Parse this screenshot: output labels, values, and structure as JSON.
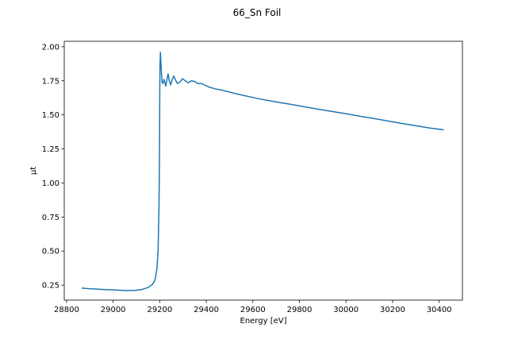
{
  "chart_data": {
    "type": "line",
    "title": "66_Sn Foil",
    "xlabel": "Energy [eV]",
    "ylabel": "μt",
    "xlim": [
      28790,
      30500
    ],
    "ylim": [
      0.14,
      2.04
    ],
    "xticks": [
      28800,
      29000,
      29200,
      29400,
      29600,
      29800,
      30000,
      30200,
      30400
    ],
    "yticks": [
      0.25,
      0.5,
      0.75,
      1.0,
      1.25,
      1.5,
      1.75,
      2.0
    ],
    "xtick_labels": [
      "28800",
      "29000",
      "29200",
      "29400",
      "29600",
      "29800",
      "30000",
      "30200",
      "30400"
    ],
    "ytick_labels": [
      "0.25",
      "0.50",
      "0.75",
      "1.00",
      "1.25",
      "1.50",
      "1.75",
      "2.00"
    ],
    "grid": false,
    "legend": false,
    "series": [
      {
        "color": "#1f77b4",
        "points": [
          [
            28865,
            0.228
          ],
          [
            28900,
            0.224
          ],
          [
            28950,
            0.219
          ],
          [
            29000,
            0.215
          ],
          [
            29050,
            0.211
          ],
          [
            29090,
            0.211
          ],
          [
            29120,
            0.217
          ],
          [
            29150,
            0.232
          ],
          [
            29170,
            0.258
          ],
          [
            29180,
            0.29
          ],
          [
            29188,
            0.37
          ],
          [
            29193,
            0.5
          ],
          [
            29197,
            0.85
          ],
          [
            29199,
            1.2
          ],
          [
            29200,
            1.6
          ],
          [
            29201,
            1.85
          ],
          [
            29203,
            1.96
          ],
          [
            29206,
            1.85
          ],
          [
            29210,
            1.74
          ],
          [
            29214,
            1.73
          ],
          [
            29218,
            1.76
          ],
          [
            29222,
            1.74
          ],
          [
            29226,
            1.71
          ],
          [
            29232,
            1.77
          ],
          [
            29236,
            1.8
          ],
          [
            29241,
            1.75
          ],
          [
            29247,
            1.72
          ],
          [
            29252,
            1.75
          ],
          [
            29260,
            1.785
          ],
          [
            29268,
            1.755
          ],
          [
            29276,
            1.73
          ],
          [
            29286,
            1.74
          ],
          [
            29298,
            1.765
          ],
          [
            29310,
            1.75
          ],
          [
            29322,
            1.735
          ],
          [
            29336,
            1.75
          ],
          [
            29350,
            1.745
          ],
          [
            29364,
            1.73
          ],
          [
            29378,
            1.73
          ],
          [
            29392,
            1.72
          ],
          [
            29410,
            1.705
          ],
          [
            29440,
            1.69
          ],
          [
            29470,
            1.68
          ],
          [
            29500,
            1.667
          ],
          [
            29540,
            1.65
          ],
          [
            29580,
            1.635
          ],
          [
            29620,
            1.62
          ],
          [
            29660,
            1.607
          ],
          [
            29700,
            1.595
          ],
          [
            29760,
            1.578
          ],
          [
            29820,
            1.56
          ],
          [
            29880,
            1.542
          ],
          [
            29940,
            1.525
          ],
          [
            30000,
            1.508
          ],
          [
            30060,
            1.49
          ],
          [
            30120,
            1.473
          ],
          [
            30180,
            1.455
          ],
          [
            30240,
            1.437
          ],
          [
            30300,
            1.42
          ],
          [
            30360,
            1.403
          ],
          [
            30420,
            1.39
          ]
        ]
      }
    ]
  }
}
